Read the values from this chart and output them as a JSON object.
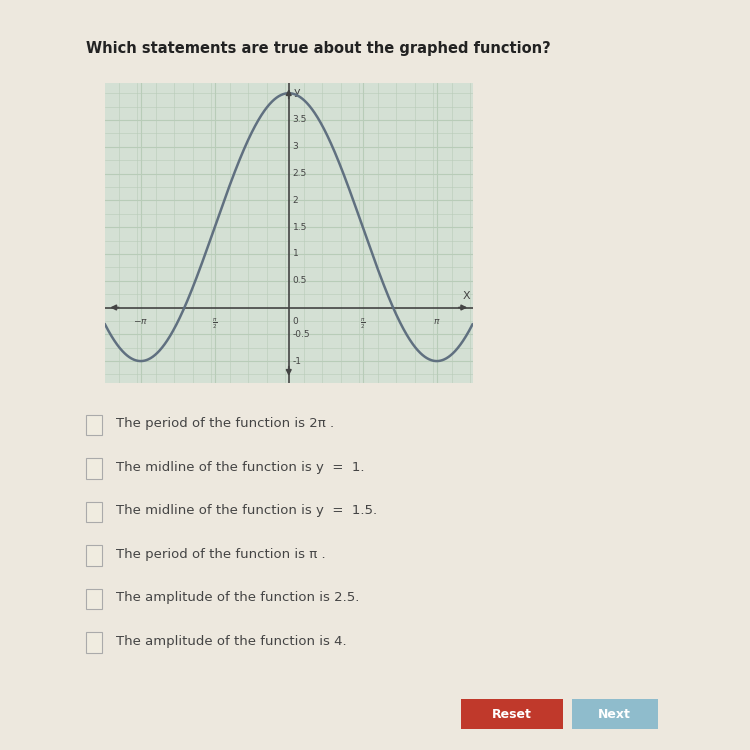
{
  "title": "Which statements are true about the graphed function?",
  "page_bg": "#ede8de",
  "plot_bg": "#d4e0d4",
  "grid_color": "#b8ccb8",
  "curve_color": "#607080",
  "axis_color": "#444444",
  "amplitude": 2.5,
  "midline": 1.5,
  "xlim": [
    -3.9,
    3.9
  ],
  "ylim": [
    -1.4,
    4.2
  ],
  "x_ticks": [
    -3.141592653589793,
    -1.5707963267948966,
    1.5707963267948966,
    3.141592653589793
  ],
  "y_ticks": [
    -1.0,
    -0.5,
    0.5,
    1.0,
    1.5,
    2.0,
    2.5,
    3.0,
    3.5
  ],
  "choices": [
    "The period of the function is 2π .",
    "The midline of the function is y  =  1.",
    "The midline of the function is y  =  1.5.",
    "The period of the function is π .",
    "The amplitude of the function is 2.5.",
    "The amplitude of the function is 4."
  ],
  "checkbox_color": "#cccccc",
  "checkbox_border": "#aaaaaa",
  "text_color": "#444444",
  "button_reset_color": "#c0392b",
  "button_next_color": "#8fbccc"
}
